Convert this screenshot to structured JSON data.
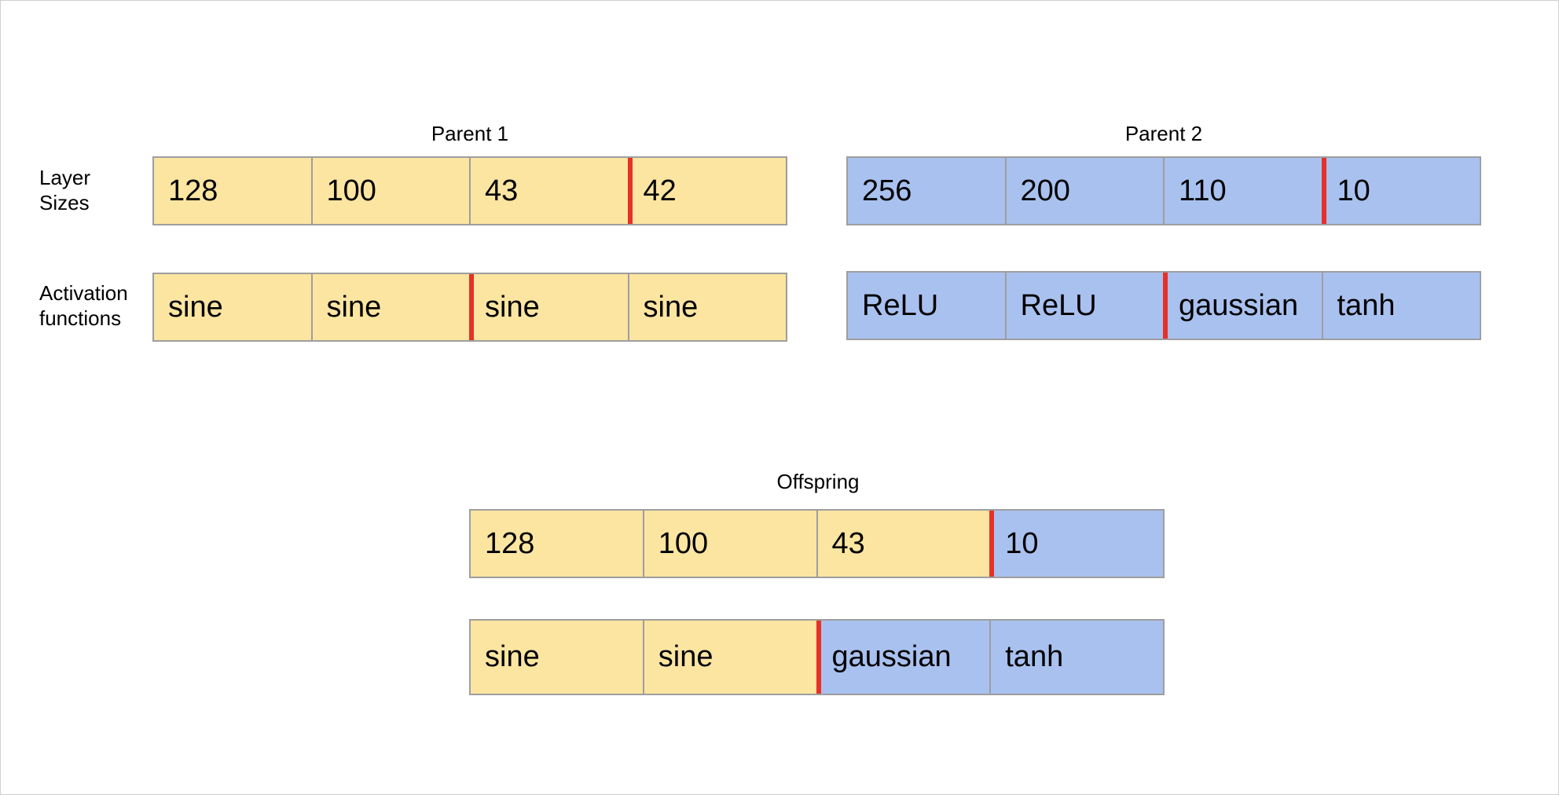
{
  "colors": {
    "parent1_fill": "#fbe5a1",
    "parent2_fill": "#a9c1ef",
    "crossover_line": "#e53127",
    "cell_border": "#9e9e9e"
  },
  "row_labels": {
    "layer_sizes_line1": "Layer",
    "layer_sizes_line2": "Sizes",
    "activation_line1": "Activation",
    "activation_line2": "functions"
  },
  "parent1": {
    "title": "Parent 1",
    "layer_sizes": [
      "128",
      "100",
      "43",
      "42"
    ],
    "layer_crossover_after_index": 2,
    "activations": [
      "sine",
      "sine",
      "sine",
      "sine"
    ],
    "activation_crossover_after_index": 1
  },
  "parent2": {
    "title": "Parent 2",
    "layer_sizes": [
      "256",
      "200",
      "110",
      "10"
    ],
    "layer_crossover_after_index": 2,
    "activations": [
      "ReLU",
      "ReLU",
      "gaussian",
      "tanh"
    ],
    "activation_crossover_after_index": 1
  },
  "offspring": {
    "title": "Offspring",
    "layer_sizes": [
      "128",
      "100",
      "43",
      "10"
    ],
    "layer_sources": [
      "parent1",
      "parent1",
      "parent1",
      "parent2"
    ],
    "activations": [
      "sine",
      "sine",
      "gaussian",
      "tanh"
    ],
    "activation_sources": [
      "parent1",
      "parent1",
      "parent2",
      "parent2"
    ]
  }
}
